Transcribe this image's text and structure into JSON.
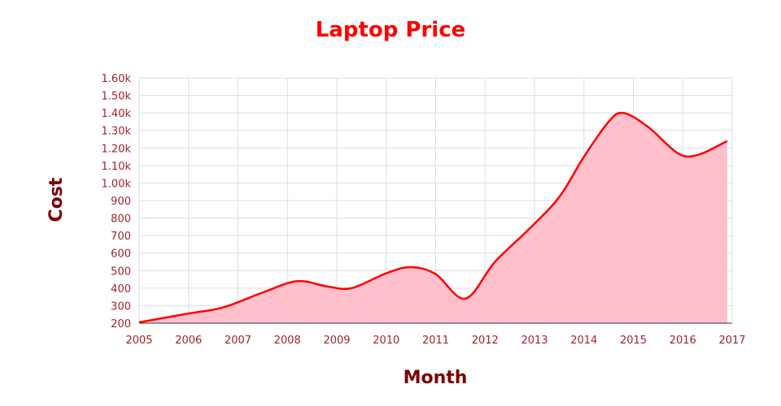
{
  "chart_data": {
    "type": "area",
    "title": "Laptop Price",
    "xlabel": "Month",
    "ylabel": "Cost",
    "x_ticks": [
      "2005",
      "2006",
      "2007",
      "2008",
      "2009",
      "2010",
      "2011",
      "2012",
      "2013",
      "2014",
      "2015",
      "2016",
      "2017"
    ],
    "y_ticks": [
      "200",
      "300",
      "400",
      "500",
      "600",
      "700",
      "800",
      "900",
      "1.00k",
      "1.10k",
      "1.20k",
      "1.30k",
      "1.40k",
      "1.50k",
      "1.60k"
    ],
    "xlim": [
      2005,
      2017
    ],
    "ylim": [
      200,
      1600
    ],
    "grid": true,
    "series": [
      {
        "x": [
          2005.0,
          2006.0,
          2006.7,
          2007.5,
          2008.2,
          2008.8,
          2009.3,
          2010.0,
          2010.5,
          2011.0,
          2011.6,
          2012.2,
          2012.9,
          2013.5,
          2014.0,
          2014.5,
          2014.8,
          2015.3,
          2015.9,
          2016.3,
          2016.9
        ],
        "y": [
          205,
          255,
          290,
          375,
          440,
          410,
          400,
          485,
          520,
          480,
          340,
          550,
          740,
          920,
          1150,
          1350,
          1400,
          1320,
          1170,
          1160,
          1240
        ]
      }
    ],
    "colors": {
      "line": "#ff0000",
      "fill": "#ffc0cb",
      "grid": "#dddddd",
      "tick": "#a0242a",
      "title": "#ff0000",
      "axis_title": "#7a0000"
    }
  }
}
